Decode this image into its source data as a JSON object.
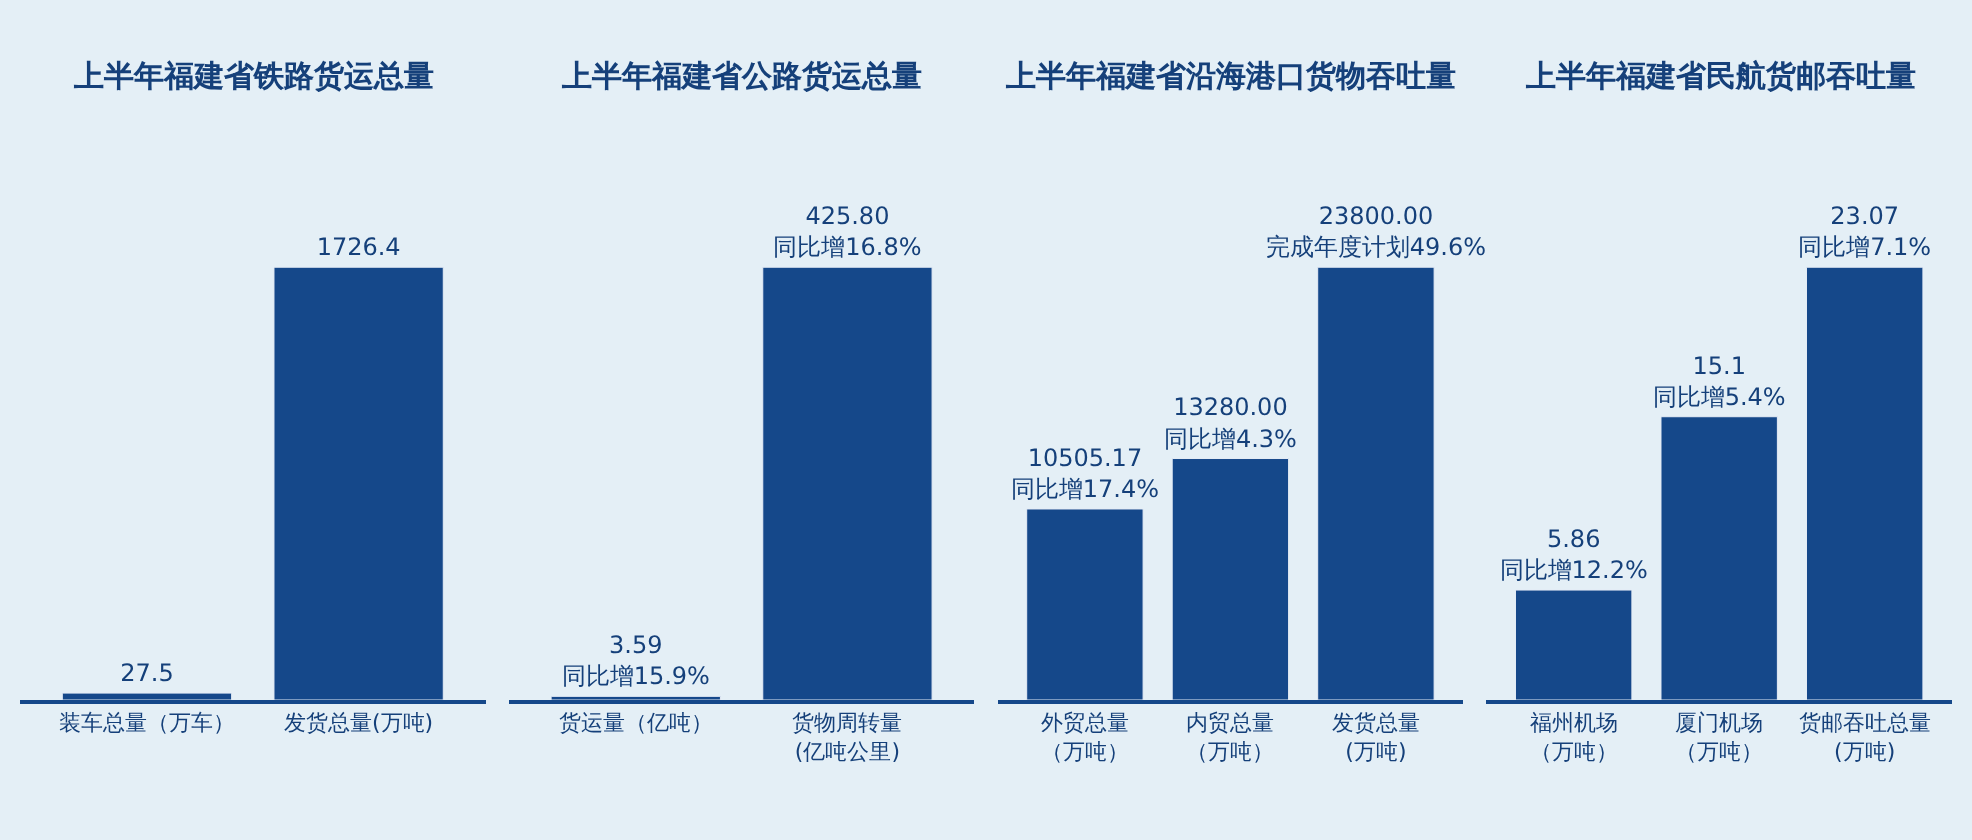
{
  "chart_data": [
    {
      "type": "bar",
      "title": "上半年福建省铁路货运总量",
      "categories": [
        "装车总量（万车）",
        "发货总量(万吨)"
      ],
      "values": [
        27.5,
        1726.4
      ],
      "color": "#15488a",
      "value_labels": [
        "27.5",
        "1726.4"
      ]
    },
    {
      "type": "bar",
      "title": "上半年福建省公路货运总量",
      "categories": [
        "货运量（亿吨）",
        "货物周转量\n(亿吨公里)"
      ],
      "values": [
        3.59,
        425.8
      ],
      "color": "#15488a",
      "value_labels": [
        "3.59\n同比增15.9%",
        "425.80\n同比增16.8%"
      ]
    },
    {
      "type": "bar",
      "title": "上半年福建省沿海港口货物吞吐量",
      "categories": [
        "外贸总量（万吨）",
        "内贸总量（万吨）",
        "发货总量\n(万吨)"
      ],
      "values": [
        10505.17,
        13280.0,
        23800.0
      ],
      "color": "#15488a",
      "value_labels": [
        "10505.17\n同比增17.4%",
        "13280.00\n同比增4.3%",
        "23800.00\n完成年度计划49.6%"
      ]
    },
    {
      "type": "bar",
      "title": "上半年福建省民航货邮吞吐量",
      "categories": [
        "福州机场（万吨）",
        "厦门机场（万吨）",
        "货邮吞吐总量\n(万吨)"
      ],
      "values": [
        5.86,
        15.1,
        23.07
      ],
      "color": "#15488a",
      "value_labels": [
        "5.86\n同比增12.2%",
        "15.1\n同比增5.4%",
        "23.07\n同比增7.1%"
      ]
    }
  ]
}
